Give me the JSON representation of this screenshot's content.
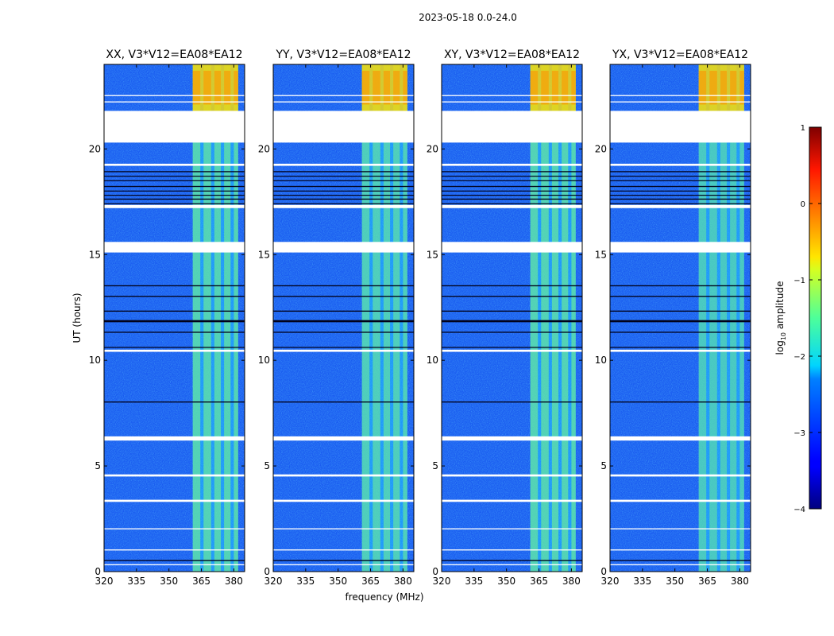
{
  "figure": {
    "suptitle": "2023-05-18 0.0-24.0",
    "xlabel": "frequency (MHz)",
    "ylabel": "UT (hours)"
  },
  "chart_data": {
    "type": "heatmap",
    "x_range": [
      320,
      385
    ],
    "y_range": [
      0,
      24
    ],
    "xticks": [
      320,
      335,
      350,
      365,
      380
    ],
    "yticks": [
      0,
      5,
      10,
      15,
      20
    ],
    "panels": [
      {
        "title": "XX, V3*V12=EA08*EA12",
        "band_level": 0.55,
        "strong_top": true
      },
      {
        "title": "YY, V3*V12=EA08*EA12",
        "band_level": 0.5,
        "strong_top": true
      },
      {
        "title": "XY, V3*V12=EA08*EA12",
        "band_level": 0.55,
        "strong_top": true
      },
      {
        "title": "YX, V3*V12=EA08*EA12",
        "band_level": 0.45,
        "strong_top": true
      }
    ],
    "rfi_band_mhz": [
      361,
      382
    ],
    "rfi_channels_mhz": [
      [
        361,
        364.5
      ],
      [
        366,
        369.5
      ],
      [
        371,
        374
      ],
      [
        375.5,
        378.5
      ],
      [
        380,
        382
      ]
    ],
    "missing_data_hours": [
      [
        20.3,
        21.8
      ],
      [
        15.1,
        15.6
      ],
      [
        17.2,
        17.35
      ],
      [
        19.2,
        19.3
      ],
      [
        10.4,
        10.5
      ],
      [
        6.2,
        6.4
      ],
      [
        4.5,
        4.6
      ],
      [
        3.3,
        3.4
      ],
      [
        2.0,
        2.05
      ],
      [
        1.0,
        1.05
      ],
      [
        0.3,
        0.35
      ],
      [
        22.2,
        22.25
      ],
      [
        22.5,
        22.55
      ]
    ],
    "dark_rows_hours": [
      [
        18.9,
        18.95
      ],
      [
        18.7,
        18.73
      ],
      [
        18.5,
        18.52
      ],
      [
        18.2,
        18.25
      ],
      [
        18.0,
        18.03
      ],
      [
        17.8,
        17.83
      ],
      [
        17.6,
        17.65
      ],
      [
        17.4,
        17.43
      ],
      [
        13.5,
        13.55
      ],
      [
        13.0,
        13.05
      ],
      [
        12.3,
        12.35
      ],
      [
        11.8,
        11.9
      ],
      [
        11.3,
        11.35
      ],
      [
        10.6,
        10.63
      ],
      [
        8.0,
        8.05
      ],
      [
        0.5,
        0.55
      ]
    ],
    "colorbar": {
      "label": "log10 amplitude",
      "label_main": "log",
      "label_sub": "10",
      "label_rest": " amplitude",
      "range": [
        -4,
        1
      ],
      "ticks": [
        1,
        0,
        -1,
        -2,
        -3,
        -4
      ],
      "tick_labels": [
        "1",
        "0",
        "−1",
        "−2",
        "−3",
        "−4"
      ],
      "colormap": "jet"
    }
  }
}
